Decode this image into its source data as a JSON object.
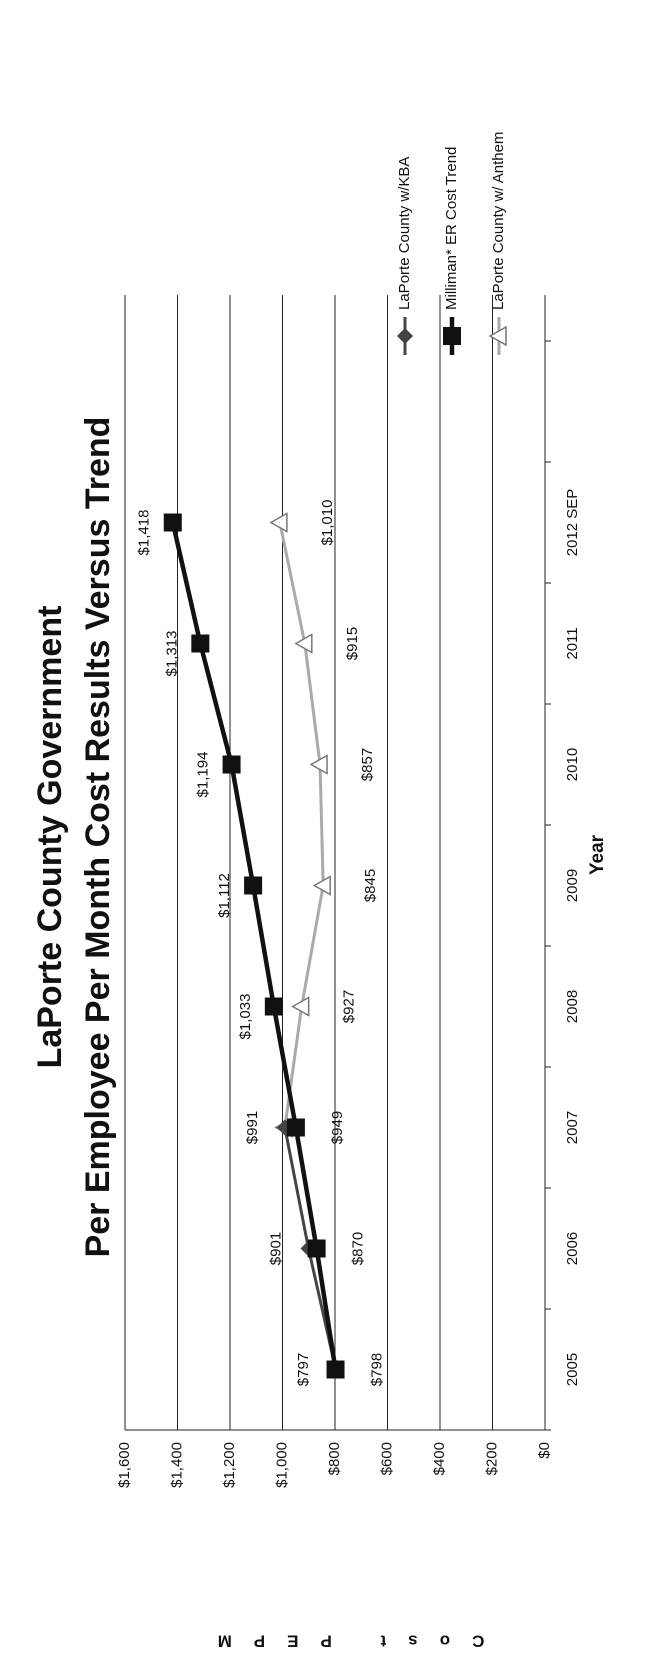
{
  "chart_data": {
    "type": "line",
    "title": "LaPorte County Government",
    "subtitle": "Per Employee Per Month Cost Results Versus Trend",
    "x_label": "Year",
    "y_label": "Cost PEPM",
    "categories": [
      "2005",
      "2006",
      "2007",
      "2008",
      "2009",
      "2010",
      "2011",
      "2012 SEP"
    ],
    "series": [
      {
        "name": "LaPorte County w/KBA",
        "color": "#444444",
        "marker": "diamond",
        "values": [
          797,
          901,
          991,
          null,
          null,
          null,
          null,
          null
        ],
        "value_labels": [
          "$797",
          "$901",
          "$991",
          null,
          null,
          null,
          null,
          null
        ]
      },
      {
        "name": "Milliman* ER Cost Trend",
        "color": "#111111",
        "marker": "square",
        "values": [
          798,
          870,
          949,
          1033,
          1112,
          1194,
          1313,
          1418
        ],
        "value_labels": [
          "$798",
          "$870",
          "$949",
          "$1,033",
          "$1,112",
          "$1,194",
          "$1,313",
          "$1,418"
        ]
      },
      {
        "name": "LaPorte County w/ Anthem",
        "color": "#aaaaaa",
        "marker": "triangle",
        "values": [
          null,
          null,
          991,
          927,
          845,
          857,
          915,
          1010
        ],
        "value_labels": [
          null,
          null,
          null,
          "$927",
          "$845",
          "$857",
          "$915",
          "$1,010"
        ]
      }
    ],
    "ylim": [
      0,
      1600
    ],
    "yticks": [
      {
        "value": 0,
        "label": "$0"
      },
      {
        "value": 200,
        "label": "$200"
      },
      {
        "value": 400,
        "label": "$400"
      },
      {
        "value": 600,
        "label": "$600"
      },
      {
        "value": 800,
        "label": "$800"
      },
      {
        "value": 1000,
        "label": "$1,000"
      },
      {
        "value": 1200,
        "label": "$1,200"
      },
      {
        "value": 1400,
        "label": "$1,400"
      },
      {
        "value": 1600,
        "label": "$1,600"
      }
    ],
    "grid": true
  }
}
